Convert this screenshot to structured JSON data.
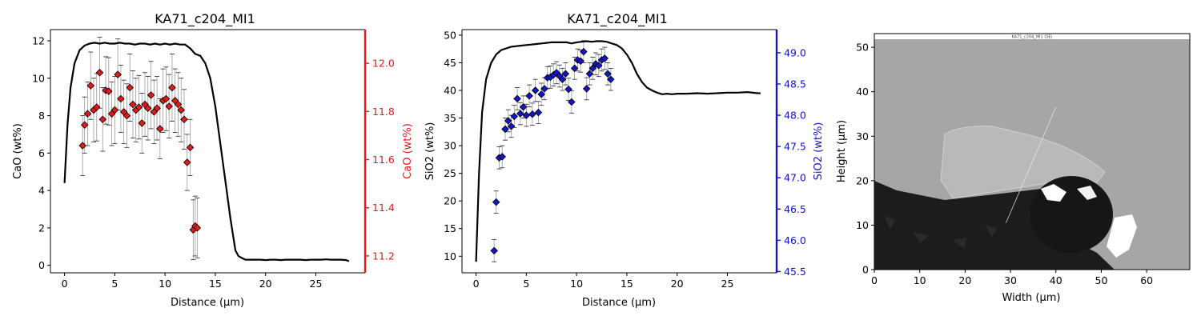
{
  "chart_data": [
    {
      "type": "line",
      "title": "KA71_c204_MI1",
      "xlabel": "Distance (µm)",
      "ylabel": "CaO (wt%)",
      "ylabel_right": "CaO (wt%)",
      "xlim": [
        -1.4,
        29.9
      ],
      "ylim": [
        -0.4,
        12.6
      ],
      "ylim_right": [
        11.13,
        12.14
      ],
      "xticks": [
        0,
        5,
        10,
        15,
        20,
        25
      ],
      "yticks": [
        0,
        2,
        4,
        6,
        8,
        10,
        12
      ],
      "yticks_right": [
        11.2,
        11.4,
        11.6,
        11.8,
        12.0
      ],
      "xtick_labels": [
        "0",
        "5",
        "10",
        "15",
        "20",
        "25"
      ],
      "ytick_labels": [
        "0",
        "2",
        "4",
        "6",
        "8",
        "10",
        "12"
      ],
      "ytick_right_labels": [
        "11.2",
        "11.4",
        "11.6",
        "11.8",
        "12.0"
      ],
      "colors": {
        "line": "#000000",
        "points": "#e31a1c",
        "right_axis": "#e31a1c",
        "errorbar": "#999999"
      },
      "profile": {
        "x": [
          0,
          0.3,
          0.6,
          1.0,
          1.5,
          2.0,
          2.5,
          3.0,
          3.5,
          4,
          4.5,
          5,
          5.5,
          6,
          6.5,
          7,
          7.5,
          8,
          8.5,
          9,
          9.5,
          10,
          10.5,
          11,
          11.5,
          12,
          12.5,
          13,
          13.5,
          14,
          14.5,
          15,
          15.5,
          16,
          16.5,
          17,
          17.3,
          17.6,
          18,
          18.5,
          19,
          19.5,
          20,
          20.5,
          21,
          21.5,
          22,
          22.5,
          23,
          23.5,
          24,
          24.5,
          25,
          25.5,
          26,
          26.5,
          27,
          27.5,
          28,
          28.3
        ],
        "y": [
          4.4,
          7.5,
          9.5,
          10.8,
          11.5,
          11.75,
          11.85,
          11.9,
          11.85,
          11.9,
          11.85,
          11.85,
          11.9,
          11.85,
          11.85,
          11.8,
          11.85,
          11.85,
          11.8,
          11.85,
          11.8,
          11.85,
          11.8,
          11.85,
          11.8,
          11.8,
          11.6,
          11.3,
          11.2,
          10.8,
          10.0,
          8.5,
          6.5,
          4.5,
          2.5,
          0.8,
          0.5,
          0.4,
          0.3,
          0.3,
          0.3,
          0.3,
          0.28,
          0.3,
          0.3,
          0.28,
          0.3,
          0.3,
          0.3,
          0.3,
          0.28,
          0.3,
          0.3,
          0.3,
          0.32,
          0.3,
          0.3,
          0.3,
          0.28,
          0.22
        ]
      },
      "points": {
        "x": [
          1.8,
          2.0,
          2.3,
          2.6,
          2.9,
          3.2,
          3.5,
          3.8,
          4.1,
          4.4,
          4.7,
          5.0,
          5.3,
          5.6,
          5.9,
          6.2,
          6.5,
          6.8,
          7.1,
          7.4,
          7.7,
          8.0,
          8.3,
          8.6,
          8.9,
          9.2,
          9.5,
          9.8,
          10.1,
          10.4,
          10.7,
          11.0,
          11.3,
          11.6,
          11.9,
          12.2,
          12.5,
          12.8,
          13.0,
          13.2
        ],
        "y": [
          6.4,
          7.5,
          8.1,
          9.6,
          8.3,
          8.45,
          10.3,
          7.8,
          9.35,
          9.3,
          8.1,
          8.3,
          10.2,
          8.9,
          8.2,
          8.0,
          9.5,
          8.6,
          8.3,
          8.45,
          7.6,
          8.6,
          8.4,
          9.1,
          8.2,
          8.4,
          7.3,
          8.8,
          8.9,
          8.5,
          9.5,
          8.8,
          8.6,
          8.3,
          7.8,
          5.5,
          6.3,
          1.9,
          2.1,
          2.0
        ],
        "err": [
          1.6,
          1.5,
          1.7,
          1.8,
          1.7,
          1.8,
          1.9,
          1.7,
          1.8,
          1.8,
          1.7,
          1.8,
          1.9,
          1.8,
          1.7,
          1.7,
          1.8,
          1.8,
          1.7,
          1.7,
          1.6,
          1.7,
          1.7,
          1.8,
          1.7,
          1.7,
          1.6,
          1.7,
          1.7,
          1.7,
          1.8,
          1.7,
          1.7,
          1.7,
          1.6,
          1.5,
          1.5,
          1.6,
          1.6,
          1.6
        ]
      }
    },
    {
      "type": "line",
      "title": "KA71_c204_MI1",
      "xlabel": "Distance (µm)",
      "ylabel": "SiO2 (wt%)",
      "ylabel_right": "SiO2 (wt%)",
      "xlim": [
        -1.4,
        29.9
      ],
      "ylim": [
        7.0,
        51.0
      ],
      "ylim_right": [
        45.48,
        49.37
      ],
      "xticks": [
        0,
        5,
        10,
        15,
        20,
        25
      ],
      "yticks": [
        10,
        15,
        20,
        25,
        30,
        35,
        40,
        45,
        50
      ],
      "yticks_right": [
        45.5,
        46.0,
        46.5,
        47.0,
        47.5,
        48.0,
        48.5,
        49.0
      ],
      "xtick_labels": [
        "0",
        "5",
        "10",
        "15",
        "20",
        "25"
      ],
      "ytick_labels": [
        "10",
        "15",
        "20",
        "25",
        "30",
        "35",
        "40",
        "45",
        "50"
      ],
      "ytick_right_labels": [
        "45.5",
        "46.0",
        "46.5",
        "47.0",
        "47.5",
        "48.0",
        "48.5",
        "49.0"
      ],
      "colors": {
        "line": "#000000",
        "points": "#1414c8",
        "right_axis": "#1414c8",
        "errorbar": "#999999"
      },
      "profile": {
        "x": [
          0,
          0.3,
          0.6,
          1.0,
          1.5,
          2.0,
          2.5,
          3.0,
          3.5,
          4,
          4.5,
          5,
          5.5,
          6,
          6.5,
          7,
          7.5,
          8,
          8.5,
          9,
          9.5,
          10,
          10.5,
          11,
          11.5,
          12,
          12.5,
          13,
          13.5,
          14,
          14.5,
          15,
          15.5,
          16,
          16.5,
          17,
          17.5,
          18,
          18.5,
          19,
          19.5,
          20,
          21,
          22,
          23,
          24,
          25,
          26,
          27,
          28,
          28.3
        ],
        "y": [
          9.0,
          25.0,
          36.0,
          42.0,
          45.0,
          46.5,
          47.3,
          47.6,
          47.9,
          48.0,
          48.1,
          48.2,
          48.3,
          48.4,
          48.5,
          48.6,
          48.7,
          48.7,
          48.7,
          48.7,
          48.5,
          48.7,
          48.8,
          48.9,
          48.8,
          48.9,
          48.9,
          48.8,
          48.5,
          48.2,
          47.6,
          46.5,
          45.0,
          43.0,
          41.5,
          40.5,
          40.0,
          39.6,
          39.3,
          39.4,
          39.3,
          39.4,
          39.4,
          39.5,
          39.4,
          39.5,
          39.6,
          39.6,
          39.7,
          39.5,
          39.5
        ]
      },
      "points": {
        "x": [
          1.8,
          2.0,
          2.3,
          2.6,
          2.9,
          3.2,
          3.5,
          3.8,
          4.1,
          4.4,
          4.7,
          5.0,
          5.3,
          5.6,
          5.9,
          6.2,
          6.5,
          6.8,
          7.1,
          7.4,
          7.7,
          8.0,
          8.3,
          8.6,
          8.9,
          9.2,
          9.5,
          9.8,
          10.1,
          10.4,
          10.7,
          11.0,
          11.3,
          11.6,
          11.9,
          12.2,
          12.5,
          12.8,
          13.1,
          13.4
        ],
        "y": [
          11.0,
          19.8,
          27.8,
          28.0,
          33.0,
          34.5,
          33.5,
          35.3,
          38.5,
          35.8,
          37.0,
          35.5,
          39.0,
          35.7,
          40.0,
          36.0,
          39.3,
          40.3,
          42.3,
          42.4,
          42.8,
          43.2,
          42.6,
          42.0,
          43.0,
          40.2,
          37.9,
          44.0,
          45.5,
          45.3,
          47.0,
          40.3,
          43.0,
          44.0,
          44.8,
          44.5,
          45.5,
          45.8,
          43.0,
          42.0
        ],
        "err": [
          2.0,
          2.0,
          2.0,
          2.0,
          2.0,
          2.0,
          2.0,
          2.0,
          2.0,
          2.0,
          2.0,
          2.0,
          2.0,
          2.0,
          2.0,
          2.0,
          2.0,
          2.0,
          2.0,
          2.0,
          2.0,
          2.0,
          2.0,
          2.0,
          2.0,
          2.0,
          2.0,
          2.0,
          2.0,
          2.0,
          2.0,
          2.0,
          2.0,
          2.0,
          2.0,
          2.0,
          2.0,
          2.0,
          2.0,
          2.0
        ]
      }
    },
    {
      "type": "image",
      "title": "",
      "image_caption": "KA71_c204_MI1 (SE)",
      "xlabel": "Width (µm)",
      "ylabel": "Height (µm)",
      "xlim": [
        0,
        69.5
      ],
      "ylim": [
        0,
        52
      ],
      "xticks": [
        0,
        10,
        20,
        30,
        40,
        50,
        60
      ],
      "yticks": [
        0,
        10,
        20,
        30,
        40,
        50
      ],
      "xtick_labels": [
        "0",
        "10",
        "20",
        "30",
        "40",
        "50",
        "60"
      ],
      "ytick_labels": [
        "0",
        "10",
        "20",
        "30",
        "40",
        "50"
      ],
      "colors": {
        "background": "#a5a5a5",
        "dark": "#1c1c1c",
        "inclusion": "#bbbbbb",
        "bright": "#ffffff"
      },
      "traverse": {
        "x1": 29.0,
        "y1": 10.5,
        "x2": 40.0,
        "y2": 36.5
      }
    }
  ]
}
